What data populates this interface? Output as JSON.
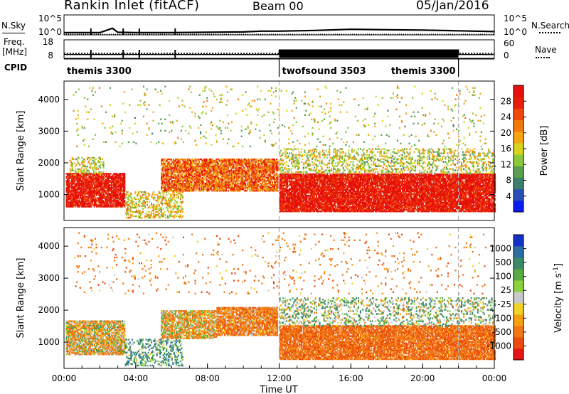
{
  "header": {
    "station": "Rankin Inlet (fitACF)",
    "beam": "Beam 00",
    "date": "05/Jan/2016"
  },
  "panel_labels": {
    "nsky": "N.Sky",
    "nsearch": "N.Search",
    "freq_line1": "Freq.",
    "freq_line2": "[MHz]",
    "nave": "Nave",
    "cpid": "CPID",
    "nsky_ticks": [
      "10^5",
      "10^0"
    ],
    "nsearch_ticks": [
      "10^5",
      "10^0"
    ],
    "freq_ticks": [
      "18",
      "8"
    ],
    "nave_ticks": [
      "60",
      "0"
    ]
  },
  "cpid_segments": [
    {
      "label": "themis 3300",
      "start_hour": 0,
      "end_hour": 12
    },
    {
      "label": "twofsound 3503",
      "start_hour": 12,
      "end_hour": 22
    },
    {
      "label": "themis 3300",
      "start_hour": 22,
      "end_hour": 24
    }
  ],
  "colors": {
    "power": [
      "#0b1ef2",
      "#2850b4",
      "#3c7f6e",
      "#5aa050",
      "#8cc83c",
      "#d7d21e",
      "#f5a514",
      "#f37a0a",
      "#f04a0a",
      "#e61e0a",
      "#e60f0a"
    ],
    "velocity": [
      "#1432c8",
      "#2d6ea0",
      "#3c8a6a",
      "#5aaa46",
      "#8cd23c",
      "#c8c8c8",
      "#f0d228",
      "#f5a014",
      "#f07814",
      "#eb4b0f",
      "#e61414"
    ],
    "dashed_line": "#b4b4b4"
  },
  "power_colorbar": {
    "label": "Power [dB]",
    "ticks": [
      "28",
      "24",
      "20",
      "16",
      "12",
      "8",
      "4"
    ]
  },
  "velocity_colorbar": {
    "label": "Velocity [m s^-1]",
    "label_main": "Velocity",
    "label_unit": "[m s",
    "label_exp": "-1",
    "label_close": "]",
    "ticks": [
      "1000",
      "500",
      "100",
      "25",
      "-25",
      "-100",
      "-500",
      "-1000"
    ]
  },
  "chart_data": [
    {
      "type": "line",
      "title": "Rankin Inlet (fitACF)",
      "subtitle": "Beam 00",
      "xlabel": "",
      "ylabel": "N.Sky",
      "x_range_hours": [
        0,
        24
      ],
      "ylim_exponent": [
        0,
        5
      ],
      "series": [
        {
          "name": "N.Sky",
          "x": [
            0,
            2,
            2.7,
            3,
            4,
            6,
            8,
            10,
            11,
            12,
            14,
            16,
            18,
            20,
            22,
            24
          ],
          "y": [
            0.4,
            0.4,
            1.6,
            0.5,
            0.4,
            0.4,
            0.5,
            0.6,
            0.8,
            0.8,
            1.0,
            1.3,
            1.2,
            1.1,
            0.9,
            0.7
          ]
        },
        {
          "name": "N.Search",
          "x": [
            0,
            2,
            4,
            6,
            8,
            10,
            12,
            14,
            16,
            18,
            20,
            22,
            24
          ],
          "y": [
            0.0,
            0.0,
            0.0,
            0.0,
            0.0,
            0.0,
            0.0,
            0.0,
            0.0,
            0.0,
            0.0,
            0.0,
            0.0
          ]
        }
      ],
      "dips_hours": [
        1.5,
        3.3,
        4.2,
        6.2
      ]
    },
    {
      "type": "line",
      "ylabel": "Freq. [MHz]",
      "x_range_hours": [
        0,
        24
      ],
      "ylim": [
        8,
        18
      ],
      "series": [
        {
          "name": "Freq.",
          "x": [
            0,
            12,
            12,
            22,
            22,
            24
          ],
          "y": [
            10.5,
            10.5,
            10.5,
            10.5,
            10.5,
            10.5
          ]
        },
        {
          "name": "Nave",
          "x": [
            0,
            12,
            12,
            22,
            22,
            24
          ],
          "y": [
            11,
            11,
            27,
            27,
            11,
            11
          ]
        }
      ]
    },
    {
      "type": "heatmap",
      "xlabel": "",
      "ylabel": "Slant Range [km]",
      "x_range_hours": [
        0,
        24
      ],
      "ylim": [
        180,
        4580
      ],
      "y_ticks": [
        1000,
        2000,
        3000,
        4000
      ],
      "colorbar": "Power [dB]",
      "value_range": [
        0,
        30
      ],
      "echo_regions": [
        {
          "t0": 0.1,
          "t1": 3.4,
          "r0": 600,
          "r1": 1650,
          "value_center": 28,
          "density": 0.85
        },
        {
          "t0": 0.3,
          "t1": 2.2,
          "r0": 1600,
          "r1": 2150,
          "value_center": 14,
          "density": 0.35
        },
        {
          "t0": 3.4,
          "t1": 6.6,
          "r0": 250,
          "r1": 1100,
          "value_center": 16,
          "density": 0.35
        },
        {
          "t0": 5.4,
          "t1": 11.9,
          "r0": 1100,
          "r1": 2100,
          "value_center": 22,
          "density": 0.8
        },
        {
          "t0": 12.0,
          "t1": 24.0,
          "r0": 450,
          "r1": 1650,
          "value_center": 28,
          "density": 0.9
        },
        {
          "t0": 12.0,
          "t1": 24.0,
          "r0": 1650,
          "r1": 2450,
          "value_center": 14,
          "density": 0.3
        },
        {
          "t0": 0.5,
          "t1": 23.5,
          "r0": 2500,
          "r1": 4400,
          "value_center": 14,
          "density": 0.03
        }
      ]
    },
    {
      "type": "heatmap",
      "xlabel": "Time UT",
      "ylabel": "Slant Range [km]",
      "x_range_hours": [
        0,
        24
      ],
      "x_ticks": [
        "00:00",
        "04:00",
        "08:00",
        "12:00",
        "16:00",
        "20:00",
        "00:00"
      ],
      "ylim": [
        180,
        4580
      ],
      "y_ticks": [
        1000,
        2000,
        3000,
        4000
      ],
      "colorbar": "Velocity [m s^-1]",
      "value_range": [
        -1000,
        1000
      ],
      "echo_regions": [
        {
          "t0": 0.1,
          "t1": 3.4,
          "r0": 600,
          "r1": 1650,
          "value_center": -60,
          "density": 0.8
        },
        {
          "t0": 3.4,
          "t1": 6.6,
          "r0": 250,
          "r1": 1100,
          "value_center": 150,
          "density": 0.35
        },
        {
          "t0": 5.4,
          "t1": 8.5,
          "r0": 1100,
          "r1": 2000,
          "value_center": -90,
          "density": 0.75
        },
        {
          "t0": 8.5,
          "t1": 11.9,
          "r0": 1200,
          "r1": 2100,
          "value_center": -180,
          "density": 0.85
        },
        {
          "t0": 12.0,
          "t1": 24.0,
          "r0": 450,
          "r1": 1500,
          "value_center": -250,
          "density": 0.85
        },
        {
          "t0": 12.0,
          "t1": 24.0,
          "r0": 1500,
          "r1": 2400,
          "value_center": 60,
          "density": 0.25
        },
        {
          "t0": 0.5,
          "t1": 23.5,
          "r0": 2500,
          "r1": 4400,
          "value_center": -200,
          "density": 0.03
        }
      ]
    }
  ]
}
